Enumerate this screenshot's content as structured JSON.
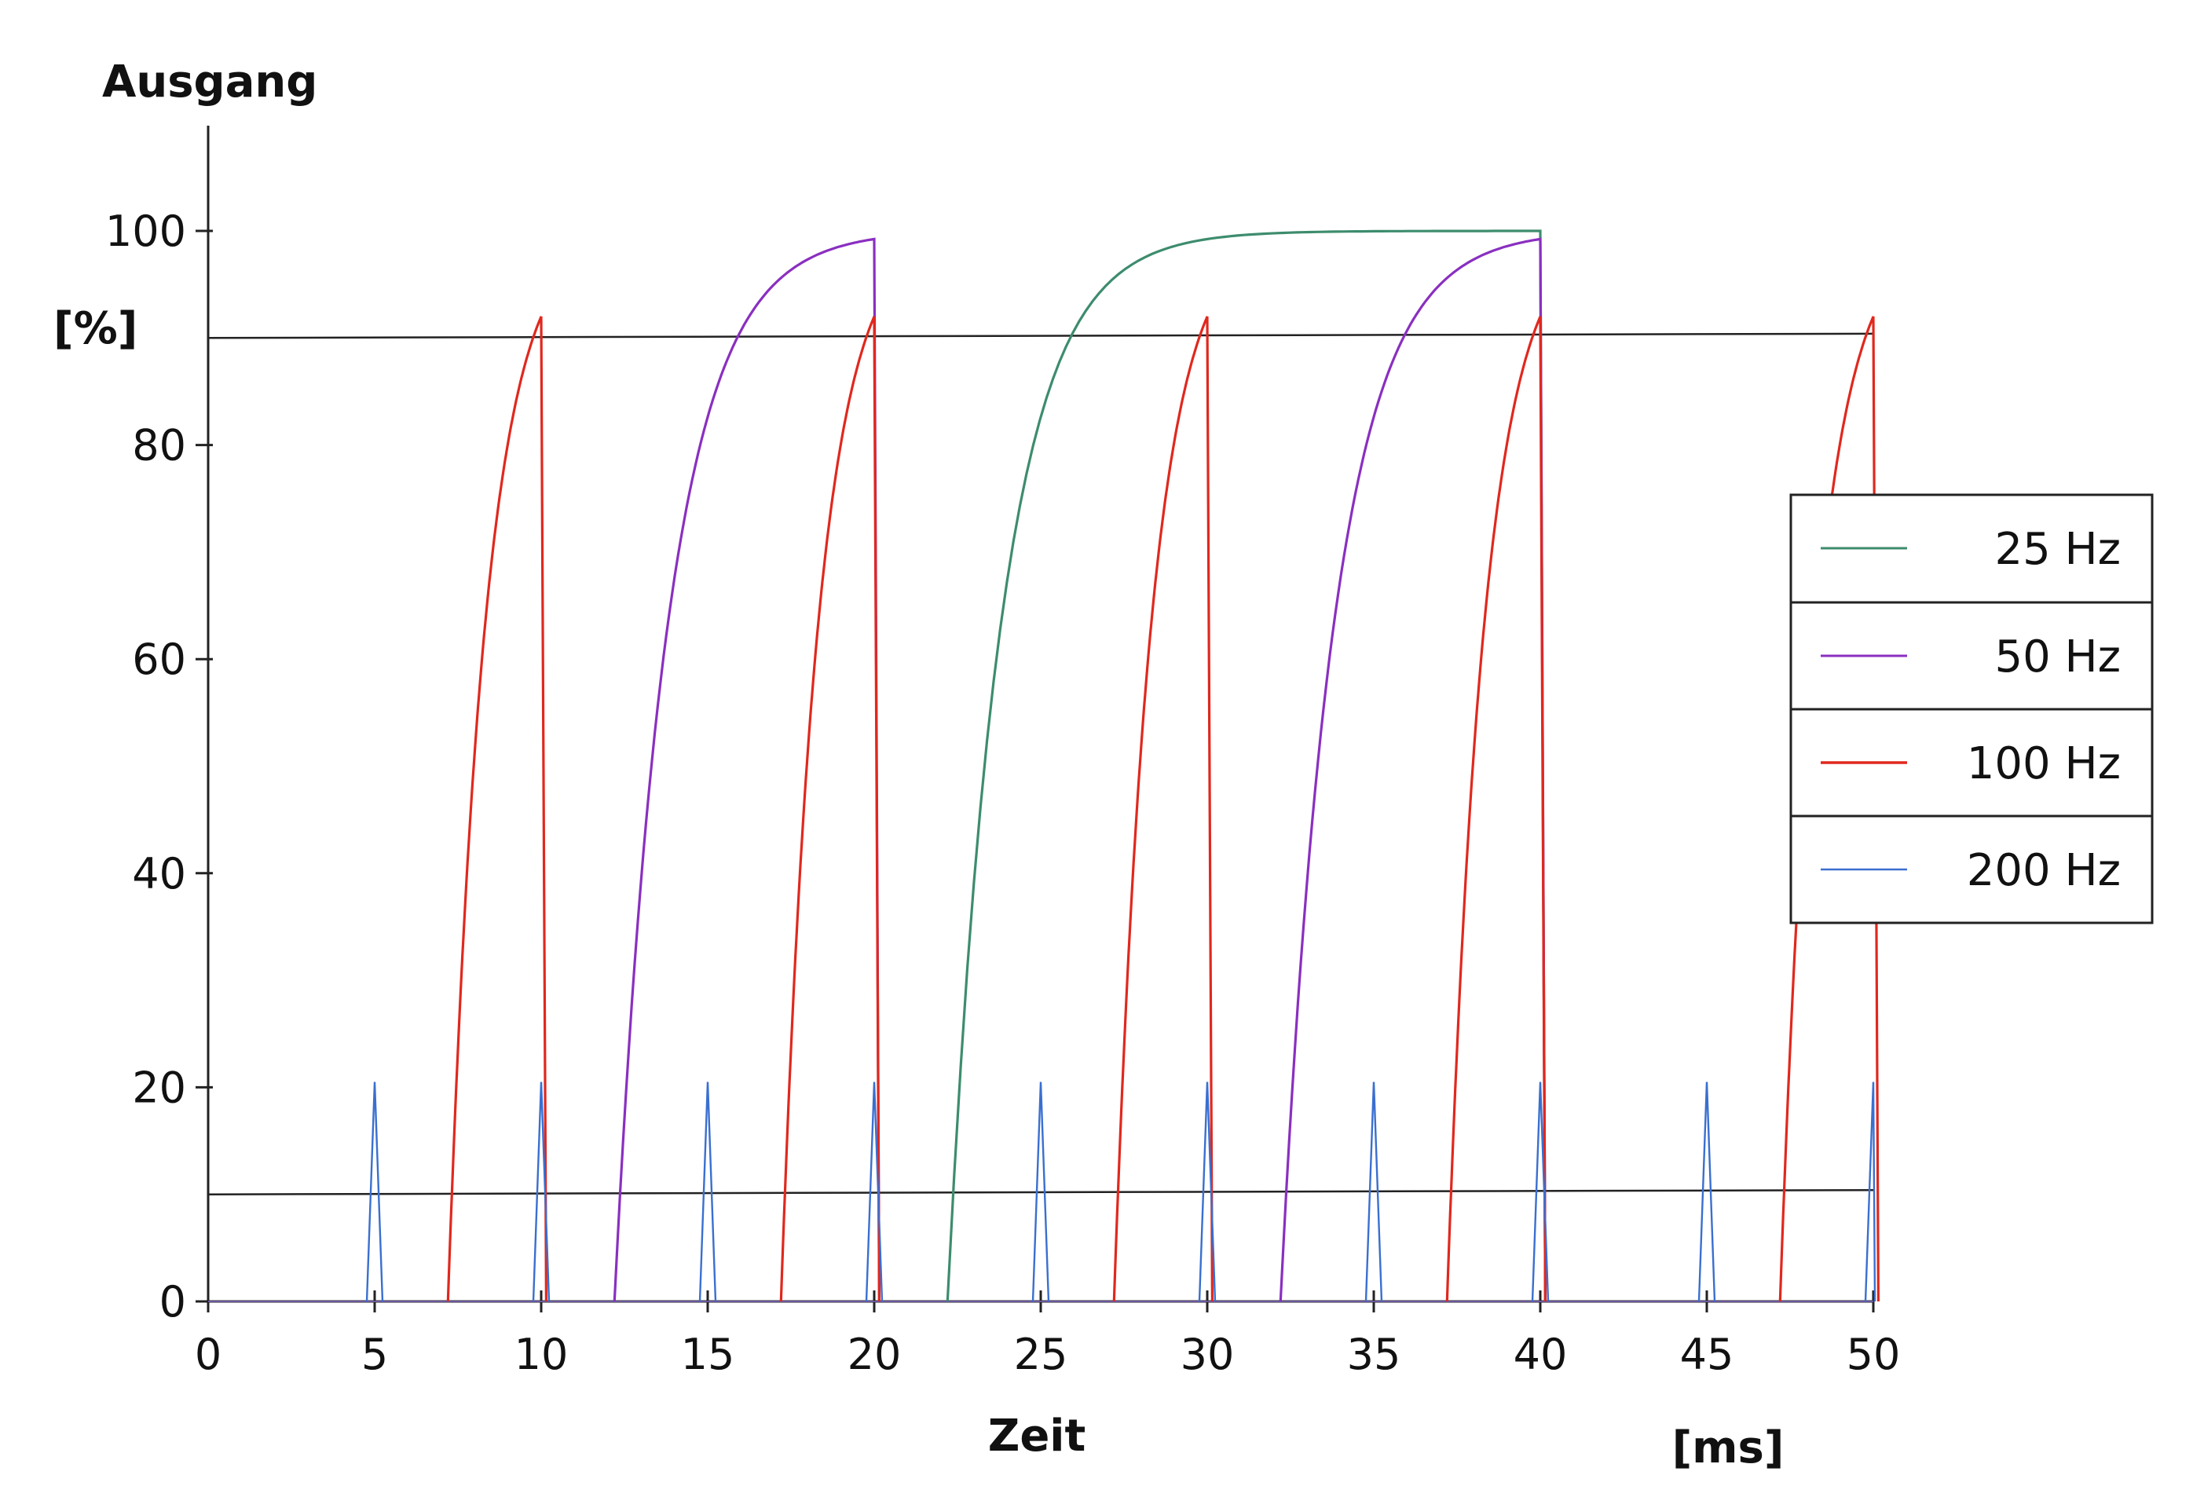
{
  "chart_data": {
    "type": "line",
    "ylabel_top": "Ausgang",
    "ylabel_unit": "[%]",
    "xlabel": "Zeit",
    "xlabel_unit": "[ms]",
    "xlim": [
      0,
      50
    ],
    "ylim": [
      0,
      110
    ],
    "x_ticks": [
      "0",
      "5",
      "10",
      "15",
      "20",
      "25",
      "30",
      "35",
      "40",
      "45",
      "50"
    ],
    "x_tick_values": [
      0,
      5,
      10,
      15,
      20,
      25,
      30,
      35,
      40,
      45,
      50
    ],
    "y_ticks": [
      "0",
      "20",
      "40",
      "60",
      "80",
      "100"
    ],
    "y_tick_values": [
      0,
      20,
      40,
      60,
      80,
      100
    ],
    "grid": false,
    "legend_position": "right",
    "reference_lines": [
      {
        "y_start": 90,
        "y_end": 90.4
      },
      {
        "y_start": 10,
        "y_end": 10.4
      }
    ],
    "series": [
      {
        "name": "25 Hz",
        "color": "#3d8c6e",
        "pulses": [
          {
            "rise_start": 22.2,
            "rise_end": 40.0,
            "peak": 100
          }
        ]
      },
      {
        "name": "50 Hz",
        "color": "#8a2fc0",
        "pulses": [
          {
            "rise_start": 12.2,
            "rise_end": 20.0,
            "peak": 100
          },
          {
            "rise_start": 32.2,
            "rise_end": 40.0,
            "peak": 100
          }
        ]
      },
      {
        "name": "100 Hz",
        "color": "#e0281e",
        "pulses": [
          {
            "rise_start": 7.2,
            "rise_end": 10.0,
            "peak": 92
          },
          {
            "rise_start": 17.2,
            "rise_end": 20.0,
            "peak": 92
          },
          {
            "rise_start": 27.2,
            "rise_end": 30.0,
            "peak": 92
          },
          {
            "rise_start": 37.2,
            "rise_end": 40.0,
            "peak": 92
          },
          {
            "rise_start": 47.2,
            "rise_end": 50.0,
            "peak": 92
          }
        ]
      },
      {
        "name": "200 Hz",
        "color": "#3a6fd0",
        "spike_height": 20.5,
        "spike_times": [
          5,
          10,
          15,
          20,
          25,
          30,
          35,
          40,
          45,
          50
        ]
      }
    ]
  }
}
